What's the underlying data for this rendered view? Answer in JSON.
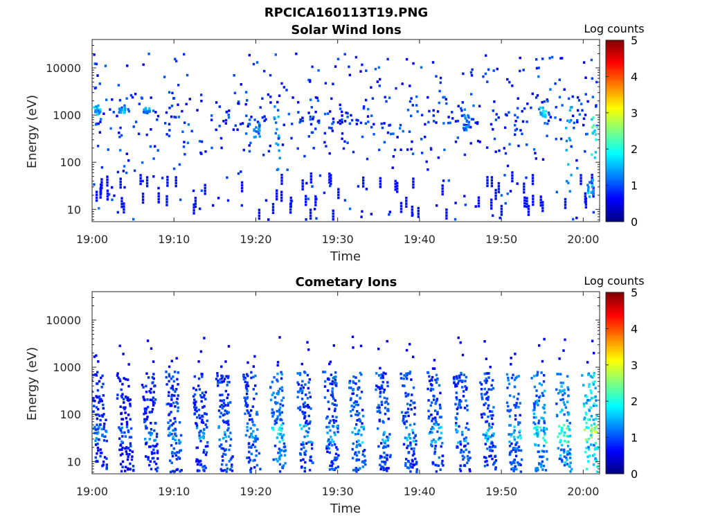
{
  "figure_title": "RPCICA160113T19.PNG",
  "chart_data": [
    {
      "type": "heatmap",
      "title": "Solar Wind Ions",
      "xlabel": "Time",
      "ylabel": "Energy (eV)",
      "x_range": [
        "19:00",
        "20:02"
      ],
      "x_ticks": [
        "19:00",
        "19:10",
        "19:20",
        "19:30",
        "19:40",
        "19:50",
        "20:00"
      ],
      "y_scale": "log",
      "y_range": [
        5.5,
        40000
      ],
      "y_ticks": [
        "10",
        "100",
        "1000",
        "10000"
      ],
      "colorbar_label": "Log counts",
      "colorbar_range": [
        0,
        5
      ],
      "colorbar_ticks": [
        "0",
        "1",
        "2",
        "3",
        "4",
        "5"
      ],
      "colormap": "jet",
      "description_mode": "sparse",
      "bands": [
        {
          "time_min": 0.5,
          "e_min": 1000,
          "e_max": 1600,
          "level": 1.6
        },
        {
          "time_min": 3.5,
          "e_min": 1100,
          "e_max": 1400,
          "level": 1.7
        },
        {
          "time_min": 6.5,
          "e_min": 1100,
          "e_max": 1400,
          "level": 1.5
        },
        {
          "time_min": 20.0,
          "e_min": 250,
          "e_max": 800,
          "level": 1.3
        },
        {
          "time_min": 22.5,
          "e_min": 60,
          "e_max": 1600,
          "level": 1.5
        },
        {
          "time_min": 45.5,
          "e_min": 400,
          "e_max": 1400,
          "level": 1.4
        },
        {
          "time_min": 55.0,
          "e_min": 900,
          "e_max": 1500,
          "level": 1.8
        },
        {
          "time_min": 58.0,
          "e_min": 20,
          "e_max": 1500,
          "level": 1.6
        },
        {
          "time_min": 60.8,
          "e_min": 18,
          "e_max": 45,
          "level": 1.6
        },
        {
          "time_min": 61.3,
          "e_min": 100,
          "e_max": 900,
          "level": 2.2
        }
      ]
    },
    {
      "type": "heatmap",
      "title": "Cometary Ions",
      "xlabel": "Time",
      "ylabel": "Energy (eV)",
      "x_range": [
        "19:00",
        "20:02"
      ],
      "x_ticks": [
        "19:00",
        "19:10",
        "19:20",
        "19:30",
        "19:40",
        "19:50",
        "20:00"
      ],
      "y_scale": "log",
      "y_range": [
        5.5,
        40000
      ],
      "y_ticks": [
        "10",
        "100",
        "1000",
        "10000"
      ],
      "colorbar_label": "Log counts",
      "colorbar_range": [
        0,
        5
      ],
      "colorbar_ticks": [
        "0",
        "1",
        "2",
        "3",
        "4",
        "5"
      ],
      "colormap": "jet",
      "description_mode": "bursts",
      "bursts_time_min": [
        0.5,
        3.6,
        6.7,
        9.6,
        12.9,
        15.8,
        19.1,
        22.3,
        25.6,
        28.9,
        32.0,
        35.2,
        38.3,
        41.5,
        44.8,
        48.0,
        51.2,
        54.3,
        57.2,
        60.5
      ],
      "burst_peak_levels": [
        1.3,
        1.2,
        1.3,
        1.5,
        1.4,
        1.6,
        1.6,
        1.9,
        1.6,
        1.6,
        1.7,
        1.6,
        1.6,
        1.6,
        1.6,
        1.6,
        1.8,
        2.1,
        2.3,
        2.8
      ],
      "burst_energy_range": [
        6,
        800
      ]
    }
  ]
}
